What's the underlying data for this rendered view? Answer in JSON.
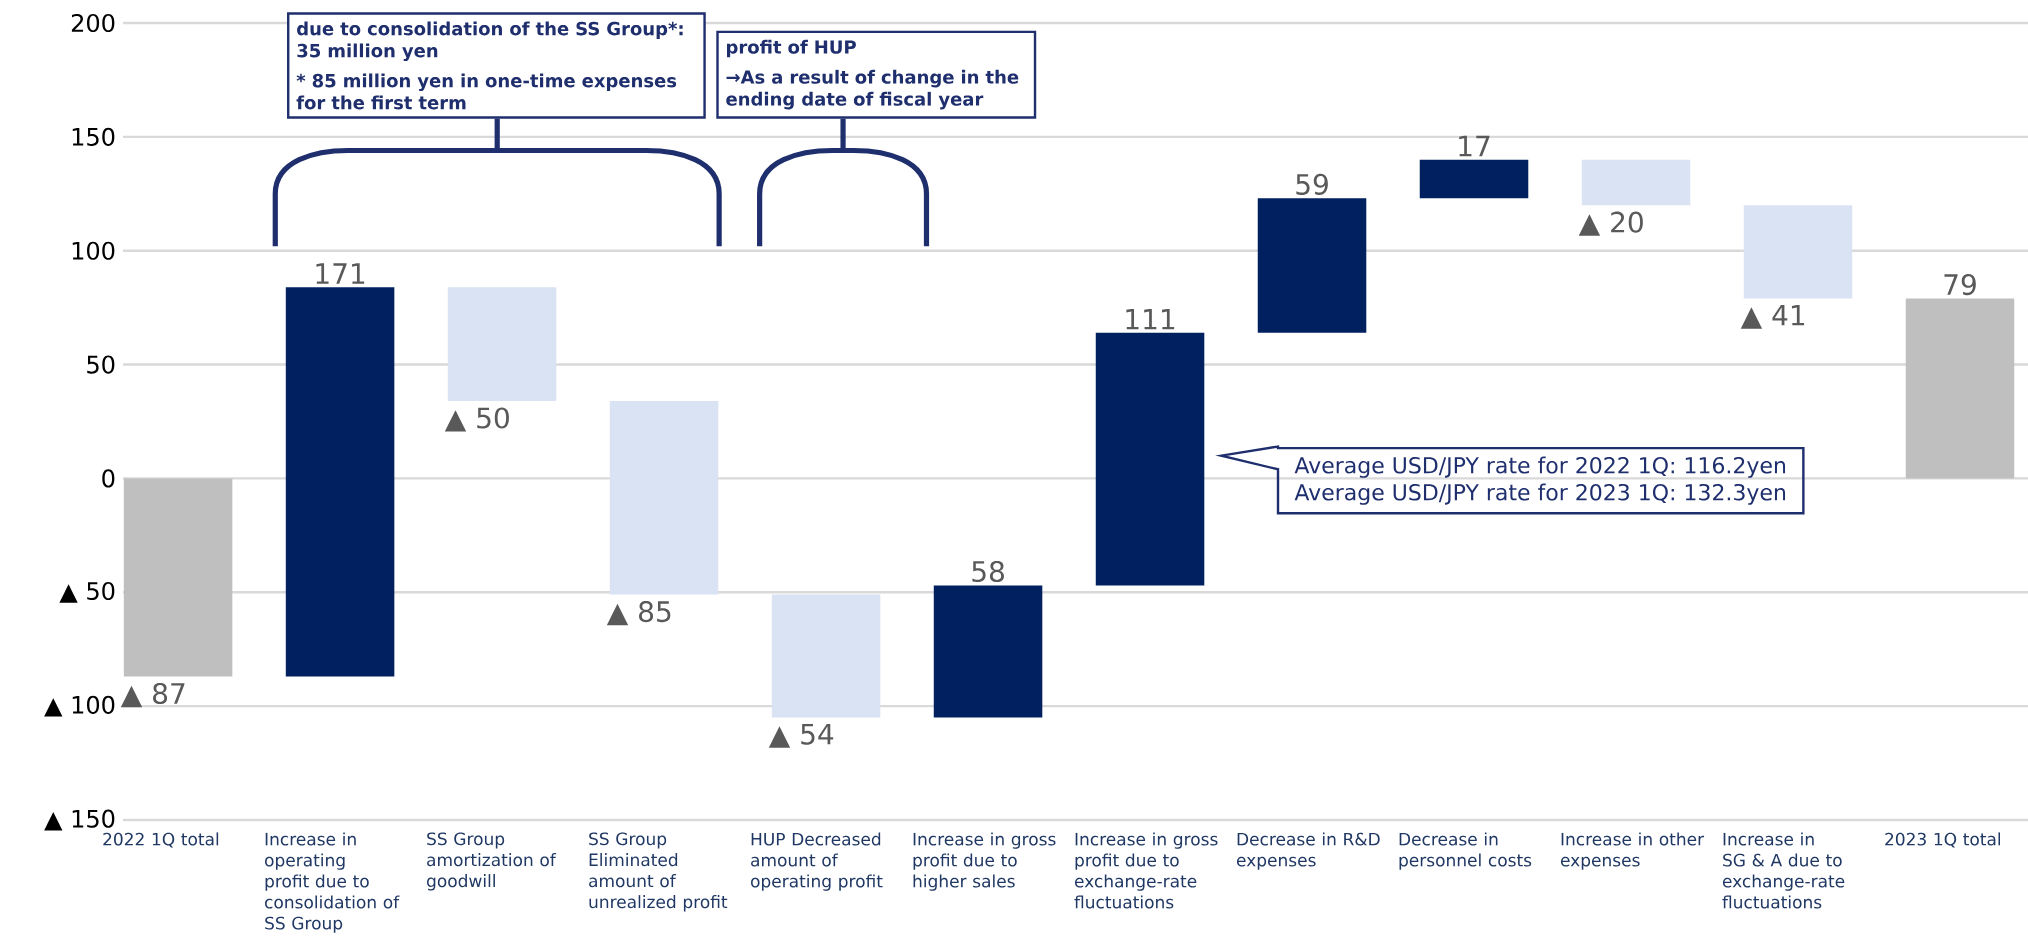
{
  "chart_data": {
    "type": "bar",
    "categories": [
      "2022 1Q total",
      "Increase in operating profit due to consolidation of SS Group",
      "SS Group amortization of goodwill",
      "SS Group Eliminated amount of unrealized profit",
      "HUP Decreased amount of operating profit",
      "Increase in gross profit due to higher sales",
      "Increase in gross profit due to exchange-rate fluctuations",
      "Decrease in R&D expenses",
      "Decrease in personnel costs",
      "Increase in other expenses",
      "Increase in SG & A due to exchange-rate fluctuations",
      "2023 1Q total"
    ],
    "values": [
      -87,
      171,
      -50,
      -85,
      -54,
      58,
      111,
      59,
      17,
      -20,
      -41,
      79
    ],
    "base": [
      0,
      -87,
      84,
      34,
      -51,
      -105,
      -47,
      64,
      123,
      140,
      120,
      0
    ],
    "colors": [
      "#bfbfbf",
      "#002060",
      "#dae3f3",
      "#dae3f3",
      "#dae3f3",
      "#002060",
      "#002060",
      "#002060",
      "#002060",
      "#dae3f3",
      "#dae3f3",
      "#bfbfbf"
    ],
    "value_labels": [
      "▲ 87",
      "171",
      "▲ 50",
      "▲ 85",
      "▲ 54",
      "58",
      "111",
      "59",
      "17",
      "▲ 20",
      "▲ 41",
      "79"
    ],
    "ylim": [
      -150,
      200
    ],
    "yticks": [
      {
        "value": -150,
        "label": "▲ 150"
      },
      {
        "value": -100,
        "label": "▲ 100"
      },
      {
        "value": -50,
        "label": "▲ 50"
      },
      0,
      50,
      100,
      150,
      200
    ],
    "grid": "y",
    "annotations": [
      "due to consolidation of the SS Group*: 35 million yen",
      "* 85 million yen in one-time expenses for the first term",
      "profit of HUP",
      "→As a result of change in the ending date of fiscal year",
      "Average USD/JPY rate for 2022 1Q: 116.2yen",
      "Average USD/JPY rate for 2023 1Q: 132.3yen"
    ]
  }
}
